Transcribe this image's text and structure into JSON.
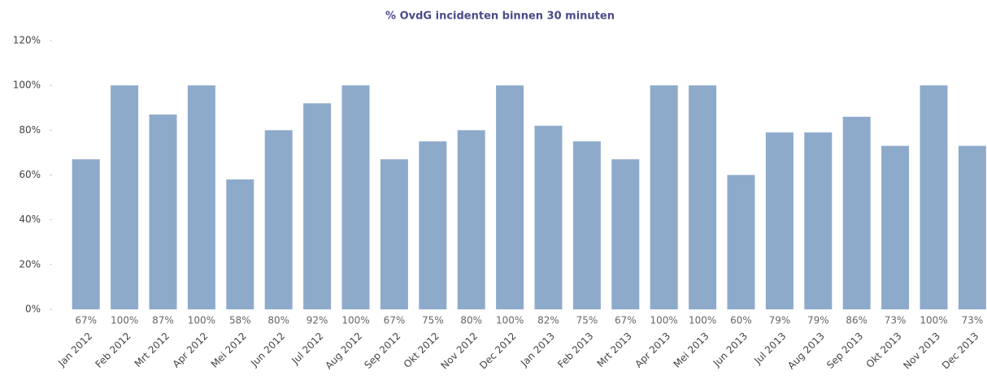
{
  "chart_data": {
    "type": "bar",
    "title": "% OvdG incidenten binnen 30 minuten",
    "categories": [
      "Jan 2012",
      "Feb 2012",
      "Mrt 2012",
      "Apr 2012",
      "Mei 2012",
      "Jun 2012",
      "Jul 2012",
      "Aug 2012",
      "Sep 2012",
      "Okt 2012",
      "Nov 2012",
      "Dec 2012",
      "Jan 2013",
      "Feb 2013",
      "Mrt 2013",
      "Apr 2013",
      "Mei 2013",
      "Jun 2013",
      "Jul 2013",
      "Aug 2013",
      "Sep 2013",
      "Okt 2013",
      "Nov 2013",
      "Dec 2013"
    ],
    "values": [
      67,
      100,
      87,
      100,
      58,
      80,
      92,
      100,
      67,
      75,
      80,
      100,
      82,
      75,
      67,
      100,
      100,
      60,
      79,
      79,
      86,
      73,
      100,
      73
    ],
    "value_labels": [
      "67%",
      "100%",
      "87%",
      "100%",
      "58%",
      "80%",
      "92%",
      "100%",
      "67%",
      "75%",
      "80%",
      "100%",
      "82%",
      "75%",
      "67%",
      "100%",
      "100%",
      "60%",
      "79%",
      "79%",
      "86%",
      "73%",
      "100%",
      "73%"
    ],
    "color": "#8eaacb",
    "ylim": [
      0,
      120
    ],
    "yticks": [
      {
        "value": 0,
        "label": "0%"
      },
      {
        "value": 20,
        "label": "20%"
      },
      {
        "value": 40,
        "label": "40%"
      },
      {
        "value": 60,
        "label": "60%"
      },
      {
        "value": 80,
        "label": "80%"
      },
      {
        "value": 100,
        "label": "100%"
      },
      {
        "value": 120,
        "label": "120%"
      }
    ],
    "grid": false
  }
}
